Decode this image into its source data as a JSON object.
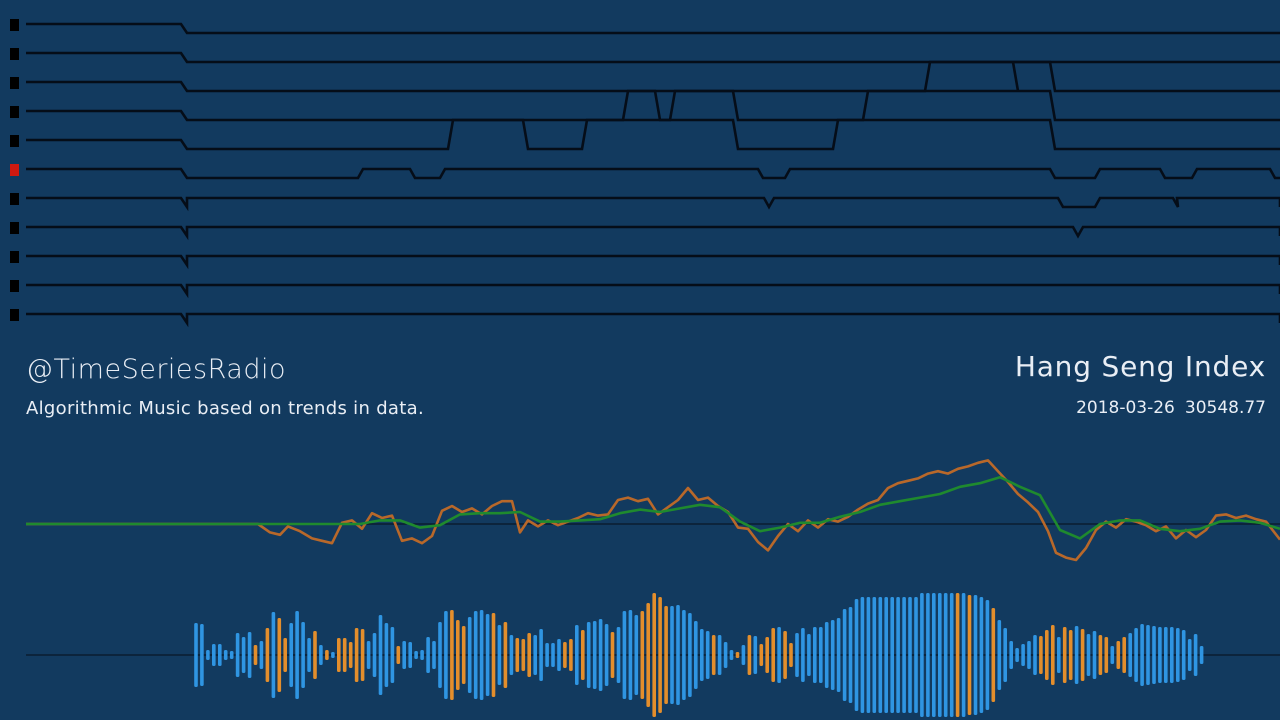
{
  "header": {
    "handle": "@TimeSeriesRadio",
    "tagline": "Algorithmic Music based on trends in data.",
    "series_name": "Hang Seng Index",
    "current_date": "2018-03-26",
    "current_value": "30548.77"
  },
  "colors": {
    "background": "#123a5f",
    "lane_line": "#050d18",
    "lane_marker": "#000000",
    "active_marker": "#d0190f",
    "price_line": "#b8682a",
    "trend_line": "#1f8a2e",
    "bar_blue": "#2f95e2",
    "bar_orange": "#e38e2c"
  },
  "chart_data": [
    {
      "type": "line",
      "name": "note-lanes",
      "active_lane": 5,
      "lanes": [
        {
          "segments": []
        },
        {
          "segments": []
        },
        {
          "segments": [
            [
              930,
              1013,
              "up"
            ],
            [
              1013,
              1050,
              "up"
            ]
          ]
        },
        {
          "segments": [
            [
              628,
              655,
              "up"
            ],
            [
              675,
              733,
              "up"
            ],
            [
              868,
              1050,
              "up"
            ]
          ]
        },
        {
          "segments": [
            [
              453,
              523,
              "up"
            ],
            [
              587,
              733,
              "up"
            ],
            [
              838,
              1050,
              "up"
            ]
          ]
        },
        {
          "segments": [
            [
              363,
              410,
              "mid"
            ],
            [
              445,
              758,
              "mid"
            ],
            [
              790,
              1050,
              "mid"
            ],
            [
              1100,
              1160,
              "mid"
            ],
            [
              1197,
              1270,
              "mid"
            ]
          ]
        },
        {
          "segments": [
            [
              187,
              764,
              "mid"
            ],
            [
              774,
              1058,
              "mid"
            ],
            [
              1100,
              1173,
              "mid"
            ],
            [
              1177,
              1280,
              "mid"
            ]
          ]
        },
        {
          "segments": [
            [
              187,
              1073,
              "mid"
            ],
            [
              1083,
              1280,
              "mid"
            ]
          ]
        },
        {
          "segments": [
            [
              187,
              1280,
              "mid"
            ]
          ]
        },
        {
          "segments": [
            [
              187,
              1280,
              "mid"
            ]
          ]
        },
        {
          "segments": [
            [
              187,
              1280,
              "mid"
            ]
          ]
        }
      ]
    },
    {
      "type": "line",
      "name": "price-and-trend",
      "baseline": 0,
      "series": [
        {
          "name": "price",
          "x": [
            26,
            258,
            270,
            280,
            288,
            300,
            312,
            322,
            332,
            342,
            352,
            362,
            372,
            382,
            392,
            402,
            412,
            422,
            432,
            442,
            452,
            462,
            472,
            482,
            492,
            502,
            512,
            520,
            528,
            538,
            548,
            558,
            568,
            578,
            588,
            598,
            608,
            618,
            628,
            638,
            648,
            658,
            668,
            678,
            688,
            698,
            708,
            718,
            728,
            738,
            748,
            758,
            768,
            778,
            788,
            798,
            808,
            818,
            828,
            838,
            848,
            858,
            868,
            878,
            888,
            898,
            908,
            918,
            928,
            938,
            948,
            958,
            968,
            978,
            988,
            998,
            1008,
            1018,
            1028,
            1038,
            1048,
            1056,
            1066,
            1076,
            1086,
            1096,
            1106,
            1116,
            1126,
            1136,
            1146,
            1156,
            1166,
            1176,
            1186,
            1196,
            1206,
            1216,
            1226,
            1236,
            1246,
            1256,
            1266,
            1280
          ],
          "values": [
            0,
            0,
            -7,
            -9,
            -2,
            -6,
            -12,
            -14,
            -16,
            1,
            3,
            -4,
            9,
            5,
            7,
            -14,
            -12,
            -16,
            -10,
            11,
            15,
            10,
            13,
            8,
            15,
            19,
            19,
            -7,
            3,
            -2,
            3,
            -1,
            2,
            5,
            9,
            7,
            8,
            20,
            22,
            19,
            21,
            8,
            14,
            20,
            30,
            20,
            22,
            15,
            10,
            -3,
            -4,
            -15,
            -22,
            -10,
            0,
            -6,
            3,
            -3,
            4,
            2,
            6,
            12,
            17,
            20,
            30,
            34,
            36,
            38,
            42,
            44,
            42,
            46,
            48,
            51,
            53,
            44,
            35,
            25,
            18,
            10,
            -6,
            -24,
            -28,
            -30,
            -20,
            -5,
            2,
            -3,
            4,
            2,
            -1,
            -6,
            -2,
            -12,
            -5,
            -11,
            -5,
            7,
            8,
            5,
            7,
            4,
            2,
            -13
          ]
        },
        {
          "name": "trend",
          "x": [
            26,
            258,
            280,
            300,
            320,
            340,
            360,
            380,
            400,
            420,
            440,
            460,
            480,
            500,
            520,
            540,
            560,
            580,
            600,
            620,
            640,
            660,
            680,
            700,
            720,
            740,
            760,
            780,
            800,
            820,
            840,
            860,
            880,
            900,
            920,
            940,
            960,
            980,
            1000,
            1020,
            1040,
            1060,
            1080,
            1100,
            1120,
            1140,
            1160,
            1180,
            1200,
            1220,
            1240,
            1260,
            1280
          ],
          "values": [
            0,
            0,
            0,
            0,
            0,
            0,
            0,
            3,
            3,
            -3,
            -1,
            8,
            9,
            9,
            10,
            2,
            2,
            3,
            4,
            9,
            12,
            10,
            13,
            16,
            14,
            2,
            -6,
            -3,
            1,
            1,
            6,
            10,
            16,
            19,
            22,
            25,
            31,
            34,
            39,
            31,
            24,
            -5,
            -12,
            0,
            3,
            3,
            -4,
            -6,
            -4,
            2,
            3,
            1,
            -4
          ]
        }
      ]
    },
    {
      "type": "bar",
      "name": "amplitude-bars",
      "x_start": 196,
      "x_step": 5.95,
      "values": [
        32,
        31,
        5,
        11,
        11,
        5,
        4,
        22,
        18,
        23,
        10,
        14,
        27,
        43,
        37,
        17,
        32,
        44,
        33,
        17,
        24,
        10,
        5,
        3,
        17,
        17,
        13,
        27,
        26,
        14,
        22,
        40,
        32,
        28,
        9,
        14,
        13,
        4,
        5,
        18,
        14,
        33,
        44,
        45,
        35,
        29,
        38,
        44,
        45,
        41,
        42,
        30,
        33,
        20,
        17,
        16,
        22,
        20,
        26,
        12,
        12,
        16,
        13,
        16,
        30,
        25,
        33,
        34,
        36,
        31,
        23,
        28,
        44,
        45,
        40,
        44,
        52,
        62,
        58,
        49,
        49,
        50,
        45,
        42,
        34,
        26,
        24,
        20,
        20,
        13,
        5,
        3,
        10,
        20,
        19,
        11,
        18,
        27,
        28,
        24,
        12,
        22,
        27,
        21,
        28,
        28,
        33,
        35,
        37,
        46,
        48,
        56,
        58,
        58,
        58,
        58,
        58,
        58,
        58,
        58,
        58,
        58,
        62,
        62,
        62,
        62,
        62,
        62,
        62,
        62,
        60,
        60,
        58,
        55,
        47,
        35,
        27,
        14,
        7,
        11,
        14,
        20,
        19,
        25,
        30,
        18,
        28,
        25,
        29,
        26,
        21,
        24,
        20,
        18,
        9,
        14,
        18,
        22,
        27,
        31,
        30,
        29,
        28,
        28,
        28,
        27,
        25,
        16,
        21,
        9
      ],
      "colors": "bbbbbbbbbboboboobbbbobobooooobbbbbobbbbbbbbooobbbbobobooobbbbboobobbbbobbbbooooobbbbbbbobbboboboooboobbbbbbbbbbbbbbbbbbbbbbbbbbbobobbbobbbbbbboooboobobbooboobbbbbbbbbbbbbbbbbbbbbbbbbobooobboobbbbbbbbbbbbooboooobbbbbb"
    }
  ]
}
